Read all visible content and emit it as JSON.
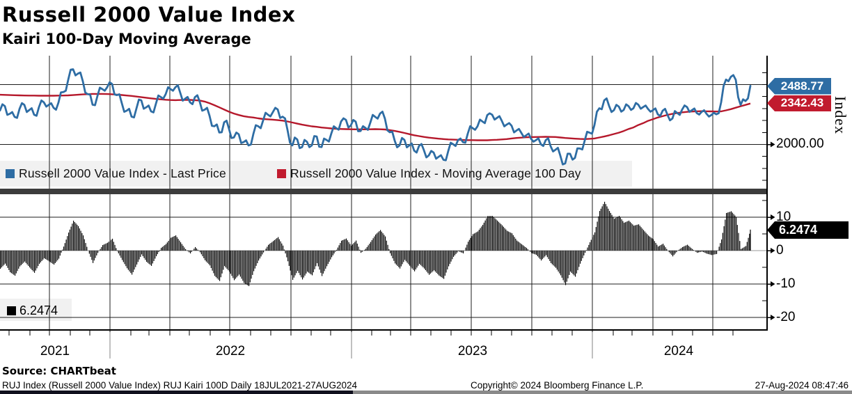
{
  "header": {
    "title": "Russell 2000 Value Index",
    "subtitle": "Kairi 100-Day Moving Average"
  },
  "colors": {
    "price_line": "#2e6da4",
    "ma_line": "#b5182b",
    "price_badge_bg": "#2e6da4",
    "ma_badge_bg": "#c11b2e",
    "kairi_badge_bg": "#000000",
    "kairi_bars": "#000000",
    "legend_bg": "#f1f1f1",
    "separator": "#3c3c3c",
    "grid": "#1c1c1c",
    "zero_line": "#999999"
  },
  "legend_top": {
    "items": [
      {
        "label": "Russell 2000 Value Index - Last Price",
        "color": "#2e6da4"
      },
      {
        "label": "Russell 2000 Value Index - Moving Average 100 Day",
        "color": "#c11b2e"
      }
    ]
  },
  "legend_bottom": {
    "value": "6.2474",
    "color": "#000000"
  },
  "badges": {
    "last_price": "2488.77",
    "moving_average": "2342.43",
    "kairi": "6.2474"
  },
  "axes": {
    "right_top": {
      "label": "Index",
      "tick": "2000.00"
    },
    "right_bottom": {
      "ticks": [
        "10",
        "0",
        "-10",
        "-20"
      ]
    },
    "x": {
      "years": [
        "2021",
        "2022",
        "2023",
        "2024"
      ]
    }
  },
  "footer": {
    "source": "Source: CHARTbeat",
    "description": "RUJ Index (Russell 2000 Value Index) RUJ Kairi 100D  Daily 18JUL2021-27AUG2024",
    "copyright": "Copyright© 2024 Bloomberg Finance L.P.",
    "timestamp": "27-Aug-2024 08:47:46"
  },
  "chart_data": [
    {
      "type": "line",
      "title": "Russell 2000 Value Index",
      "x_range": [
        "18JUL2021",
        "27AUG2024"
      ],
      "ylabel": "Index",
      "ylim": [
        1600,
        2700
      ],
      "gridline_values": [
        2500,
        2000
      ],
      "labeled_tick": 2000.0,
      "grid": "on",
      "legend_position": "bottom-strip",
      "series": [
        {
          "name": "Russell 2000 Value Index - Last Price",
          "color": "#2e6da4",
          "last_value": 2488.77,
          "values": [
            2284,
            2320,
            2256,
            2230,
            2296,
            2330,
            2287,
            2248,
            2312,
            2352,
            2330,
            2306,
            2350,
            2438,
            2540,
            2628,
            2592,
            2528,
            2420,
            2332,
            2405,
            2462,
            2478,
            2505,
            2412,
            2345,
            2282,
            2232,
            2300,
            2368,
            2310,
            2276,
            2340,
            2396,
            2420,
            2462,
            2478,
            2430,
            2382,
            2352,
            2395,
            2355,
            2290,
            2240,
            2152,
            2100,
            2185,
            2130,
            2058,
            2085,
            2020,
            1992,
            2088,
            2152,
            2200,
            2248,
            2270,
            2292,
            2232,
            2122,
            1992,
            2042,
            1978,
            2022,
            1992,
            2066,
            1978,
            2038,
            2092,
            2136,
            2192,
            2205,
            2158,
            2190,
            2112,
            2138,
            2182,
            2230,
            2258,
            2215,
            2102,
            2032,
            1992,
            2038,
            1992,
            1948,
            1988,
            1952,
            1908,
            1932,
            1896,
            1872,
            1946,
            2002,
            2036,
            2020,
            2090,
            2136,
            2152,
            2192,
            2245,
            2248,
            2222,
            2196,
            2166,
            2156,
            2116,
            2096,
            2076,
            2046,
            2036,
            2002,
            2036,
            1986,
            1956,
            1906,
            1842,
            1922,
            1888,
            1966,
            2032,
            2098,
            2162,
            2302,
            2368,
            2322,
            2286,
            2316,
            2288,
            2320,
            2302,
            2332,
            2312,
            2296,
            2286,
            2252,
            2282,
            2246,
            2216,
            2262,
            2292,
            2312,
            2286,
            2262,
            2272,
            2256,
            2246,
            2252,
            2352,
            2542,
            2565,
            2540,
            2330,
            2362,
            2489
          ]
        },
        {
          "name": "Russell 2000 Value Index - Moving Average 100 Day",
          "color": "#b5182b",
          "last_value": 2342.43,
          "values": [
            2415,
            2414,
            2412,
            2411,
            2410,
            2409,
            2408,
            2408,
            2407,
            2407,
            2407,
            2407,
            2408,
            2409,
            2410,
            2412,
            2415,
            2418,
            2420,
            2422,
            2422,
            2422,
            2421,
            2419,
            2416,
            2413,
            2409,
            2405,
            2400,
            2395,
            2390,
            2385,
            2380,
            2377,
            2373,
            2371,
            2370,
            2371,
            2372,
            2372,
            2370,
            2367,
            2358,
            2344,
            2328,
            2310,
            2291,
            2273,
            2258,
            2246,
            2236,
            2229,
            2225,
            2218,
            2212,
            2210,
            2207,
            2203,
            2199,
            2192,
            2183,
            2174,
            2165,
            2158,
            2151,
            2147,
            2141,
            2138,
            2134,
            2131,
            2129,
            2128,
            2127,
            2126,
            2126,
            2126,
            2127,
            2128,
            2127,
            2125,
            2119,
            2113,
            2105,
            2096,
            2086,
            2077,
            2070,
            2063,
            2057,
            2053,
            2048,
            2045,
            2042,
            2040,
            2039,
            2037,
            2036,
            2036,
            2035,
            2035,
            2035,
            2037,
            2039,
            2042,
            2045,
            2050,
            2054,
            2057,
            2060,
            2061,
            2062,
            2063,
            2064,
            2063,
            2062,
            2058,
            2054,
            2051,
            2048,
            2046,
            2045,
            2047,
            2050,
            2058,
            2066,
            2076,
            2087,
            2098,
            2112,
            2129,
            2142,
            2162,
            2178,
            2197,
            2211,
            2225,
            2236,
            2247,
            2255,
            2263,
            2268,
            2272,
            2275,
            2277,
            2278,
            2277,
            2276,
            2275,
            2276,
            2285,
            2295,
            2307,
            2319,
            2330,
            2342
          ]
        }
      ]
    },
    {
      "type": "bar",
      "title": "Kairi 100-Day Moving Average",
      "derived_from": "kairi = (last_price - moving_average) / moving_average * 100",
      "color": "#000000",
      "ylim": [
        -24,
        17.3
      ],
      "yticks": [
        10,
        0,
        -10,
        -20
      ],
      "grid": "on",
      "last_value": 6.2474
    }
  ]
}
